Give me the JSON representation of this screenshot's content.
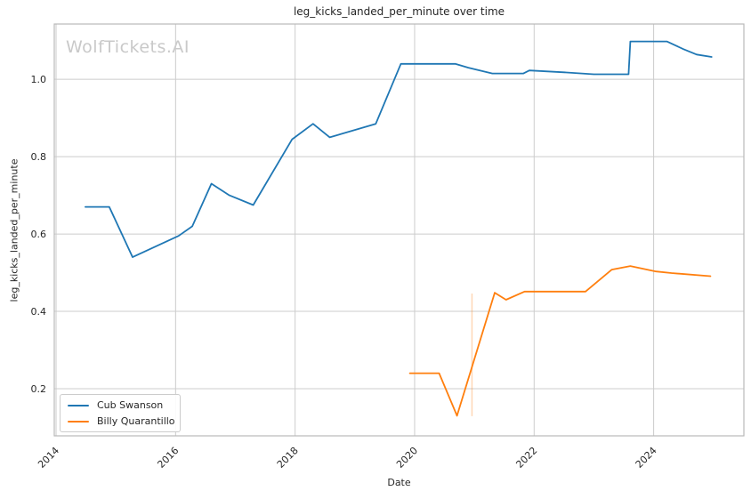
{
  "watermark": {
    "text": "WolfTickets.AI"
  },
  "chart_data": {
    "type": "line",
    "title": "leg_kicks_landed_per_minute over time",
    "xlabel": "Date",
    "ylabel": "leg_kicks_landed_per_minute",
    "grid": true,
    "legend_position": "lower-left",
    "xlim": [
      2013.97,
      2025.51
    ],
    "ylim": [
      0.078,
      1.143
    ],
    "x_ticks": [
      {
        "value": 2014,
        "label": "2014"
      },
      {
        "value": 2016,
        "label": "2016"
      },
      {
        "value": 2018,
        "label": "2018"
      },
      {
        "value": 2020,
        "label": "2020"
      },
      {
        "value": 2022,
        "label": "2022"
      },
      {
        "value": 2024,
        "label": "2024"
      }
    ],
    "y_ticks": [
      {
        "value": 0.2,
        "label": "0.2"
      },
      {
        "value": 0.4,
        "label": "0.4"
      },
      {
        "value": 0.6,
        "label": "0.6"
      },
      {
        "value": 0.8,
        "label": "0.8"
      },
      {
        "value": 1.0,
        "label": "1.0"
      }
    ],
    "series": [
      {
        "name": "Cub Swanson",
        "color": "#1f77b4",
        "points": [
          [
            2014.49,
            0.67
          ],
          [
            2014.89,
            0.67
          ],
          [
            2015.28,
            0.54
          ],
          [
            2016.05,
            0.595
          ],
          [
            2016.28,
            0.62
          ],
          [
            2016.6,
            0.73
          ],
          [
            2016.9,
            0.7
          ],
          [
            2017.3,
            0.675
          ],
          [
            2017.95,
            0.845
          ],
          [
            2018.3,
            0.885
          ],
          [
            2018.58,
            0.85
          ],
          [
            2019.35,
            0.885
          ],
          [
            2019.77,
            1.04
          ],
          [
            2020.68,
            1.04
          ],
          [
            2020.9,
            1.03
          ],
          [
            2021.3,
            1.015
          ],
          [
            2021.82,
            1.015
          ],
          [
            2021.92,
            1.023
          ],
          [
            2022.5,
            1.018
          ],
          [
            2023.0,
            1.013
          ],
          [
            2023.58,
            1.013
          ],
          [
            2023.61,
            1.098
          ],
          [
            2024.22,
            1.098
          ],
          [
            2024.5,
            1.078
          ],
          [
            2024.72,
            1.064
          ],
          [
            2024.97,
            1.058
          ]
        ]
      },
      {
        "name": "Billy Quarantillo",
        "color": "#ff7f0e",
        "points": [
          [
            2019.92,
            0.24
          ],
          [
            2020.41,
            0.24
          ],
          [
            2020.71,
            0.13
          ],
          [
            2021.34,
            0.448
          ],
          [
            2021.53,
            0.43
          ],
          [
            2021.84,
            0.451
          ],
          [
            2022.86,
            0.451
          ],
          [
            2023.3,
            0.508
          ],
          [
            2023.61,
            0.517
          ],
          [
            2024.04,
            0.503
          ],
          [
            2024.3,
            0.499
          ],
          [
            2024.95,
            0.491
          ]
        ]
      }
    ],
    "annotations": [
      {
        "type": "vline",
        "x": 2020.96,
        "y_from": 0.129,
        "y_to": 0.446,
        "color": "#ff7f0e",
        "opacity": 0.3
      }
    ],
    "style": {
      "grid_color": "#cccccc",
      "spine_color": "#b9b9b9",
      "text_color": "#262626",
      "line_width": 1.8
    }
  }
}
